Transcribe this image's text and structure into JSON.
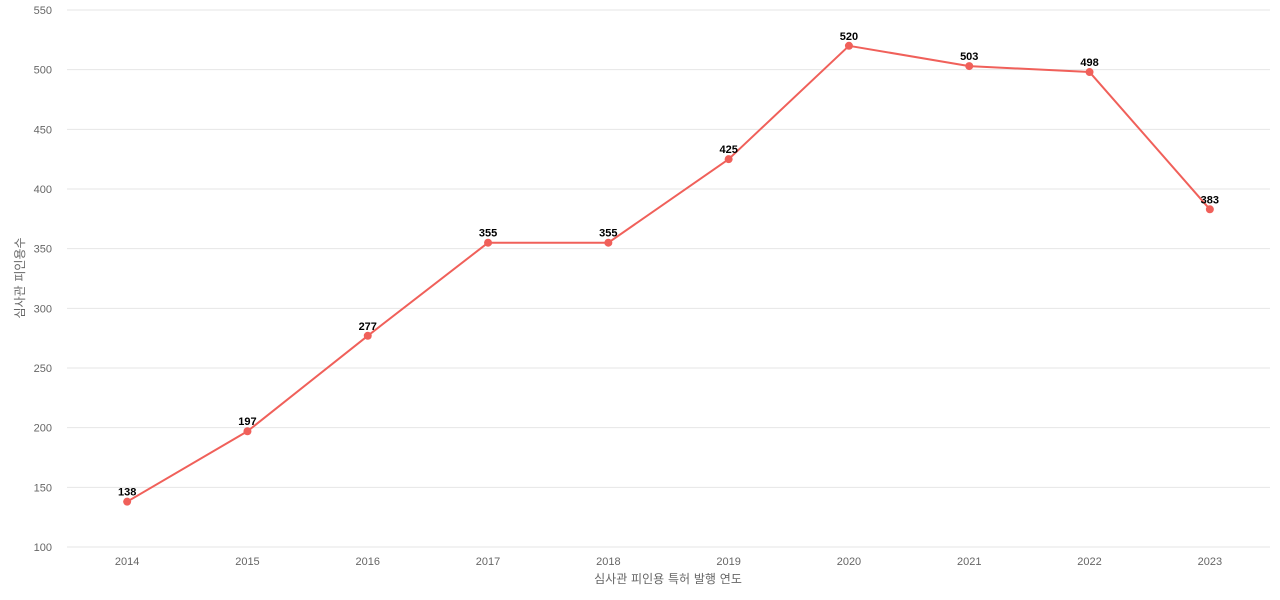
{
  "chart_data": {
    "type": "line",
    "title": "",
    "xlabel": "심사관 피인용 특허 발행 연도",
    "ylabel": "심사관 피인용수",
    "categories": [
      "2014",
      "2015",
      "2016",
      "2017",
      "2018",
      "2019",
      "2020",
      "2021",
      "2022",
      "2023"
    ],
    "series": [
      {
        "values": [
          138,
          197,
          277,
          355,
          355,
          425,
          520,
          503,
          498,
          383
        ]
      }
    ],
    "ylim": [
      100,
      550
    ],
    "yticks": [
      "100",
      "150",
      "200",
      "250",
      "300",
      "350",
      "400",
      "450",
      "500",
      "550"
    ],
    "grid": true,
    "data_labels": true,
    "colors": {
      "line": "#f0605a",
      "grid": "#e6e6e6",
      "tick": "#666666",
      "label": "#000000"
    }
  }
}
